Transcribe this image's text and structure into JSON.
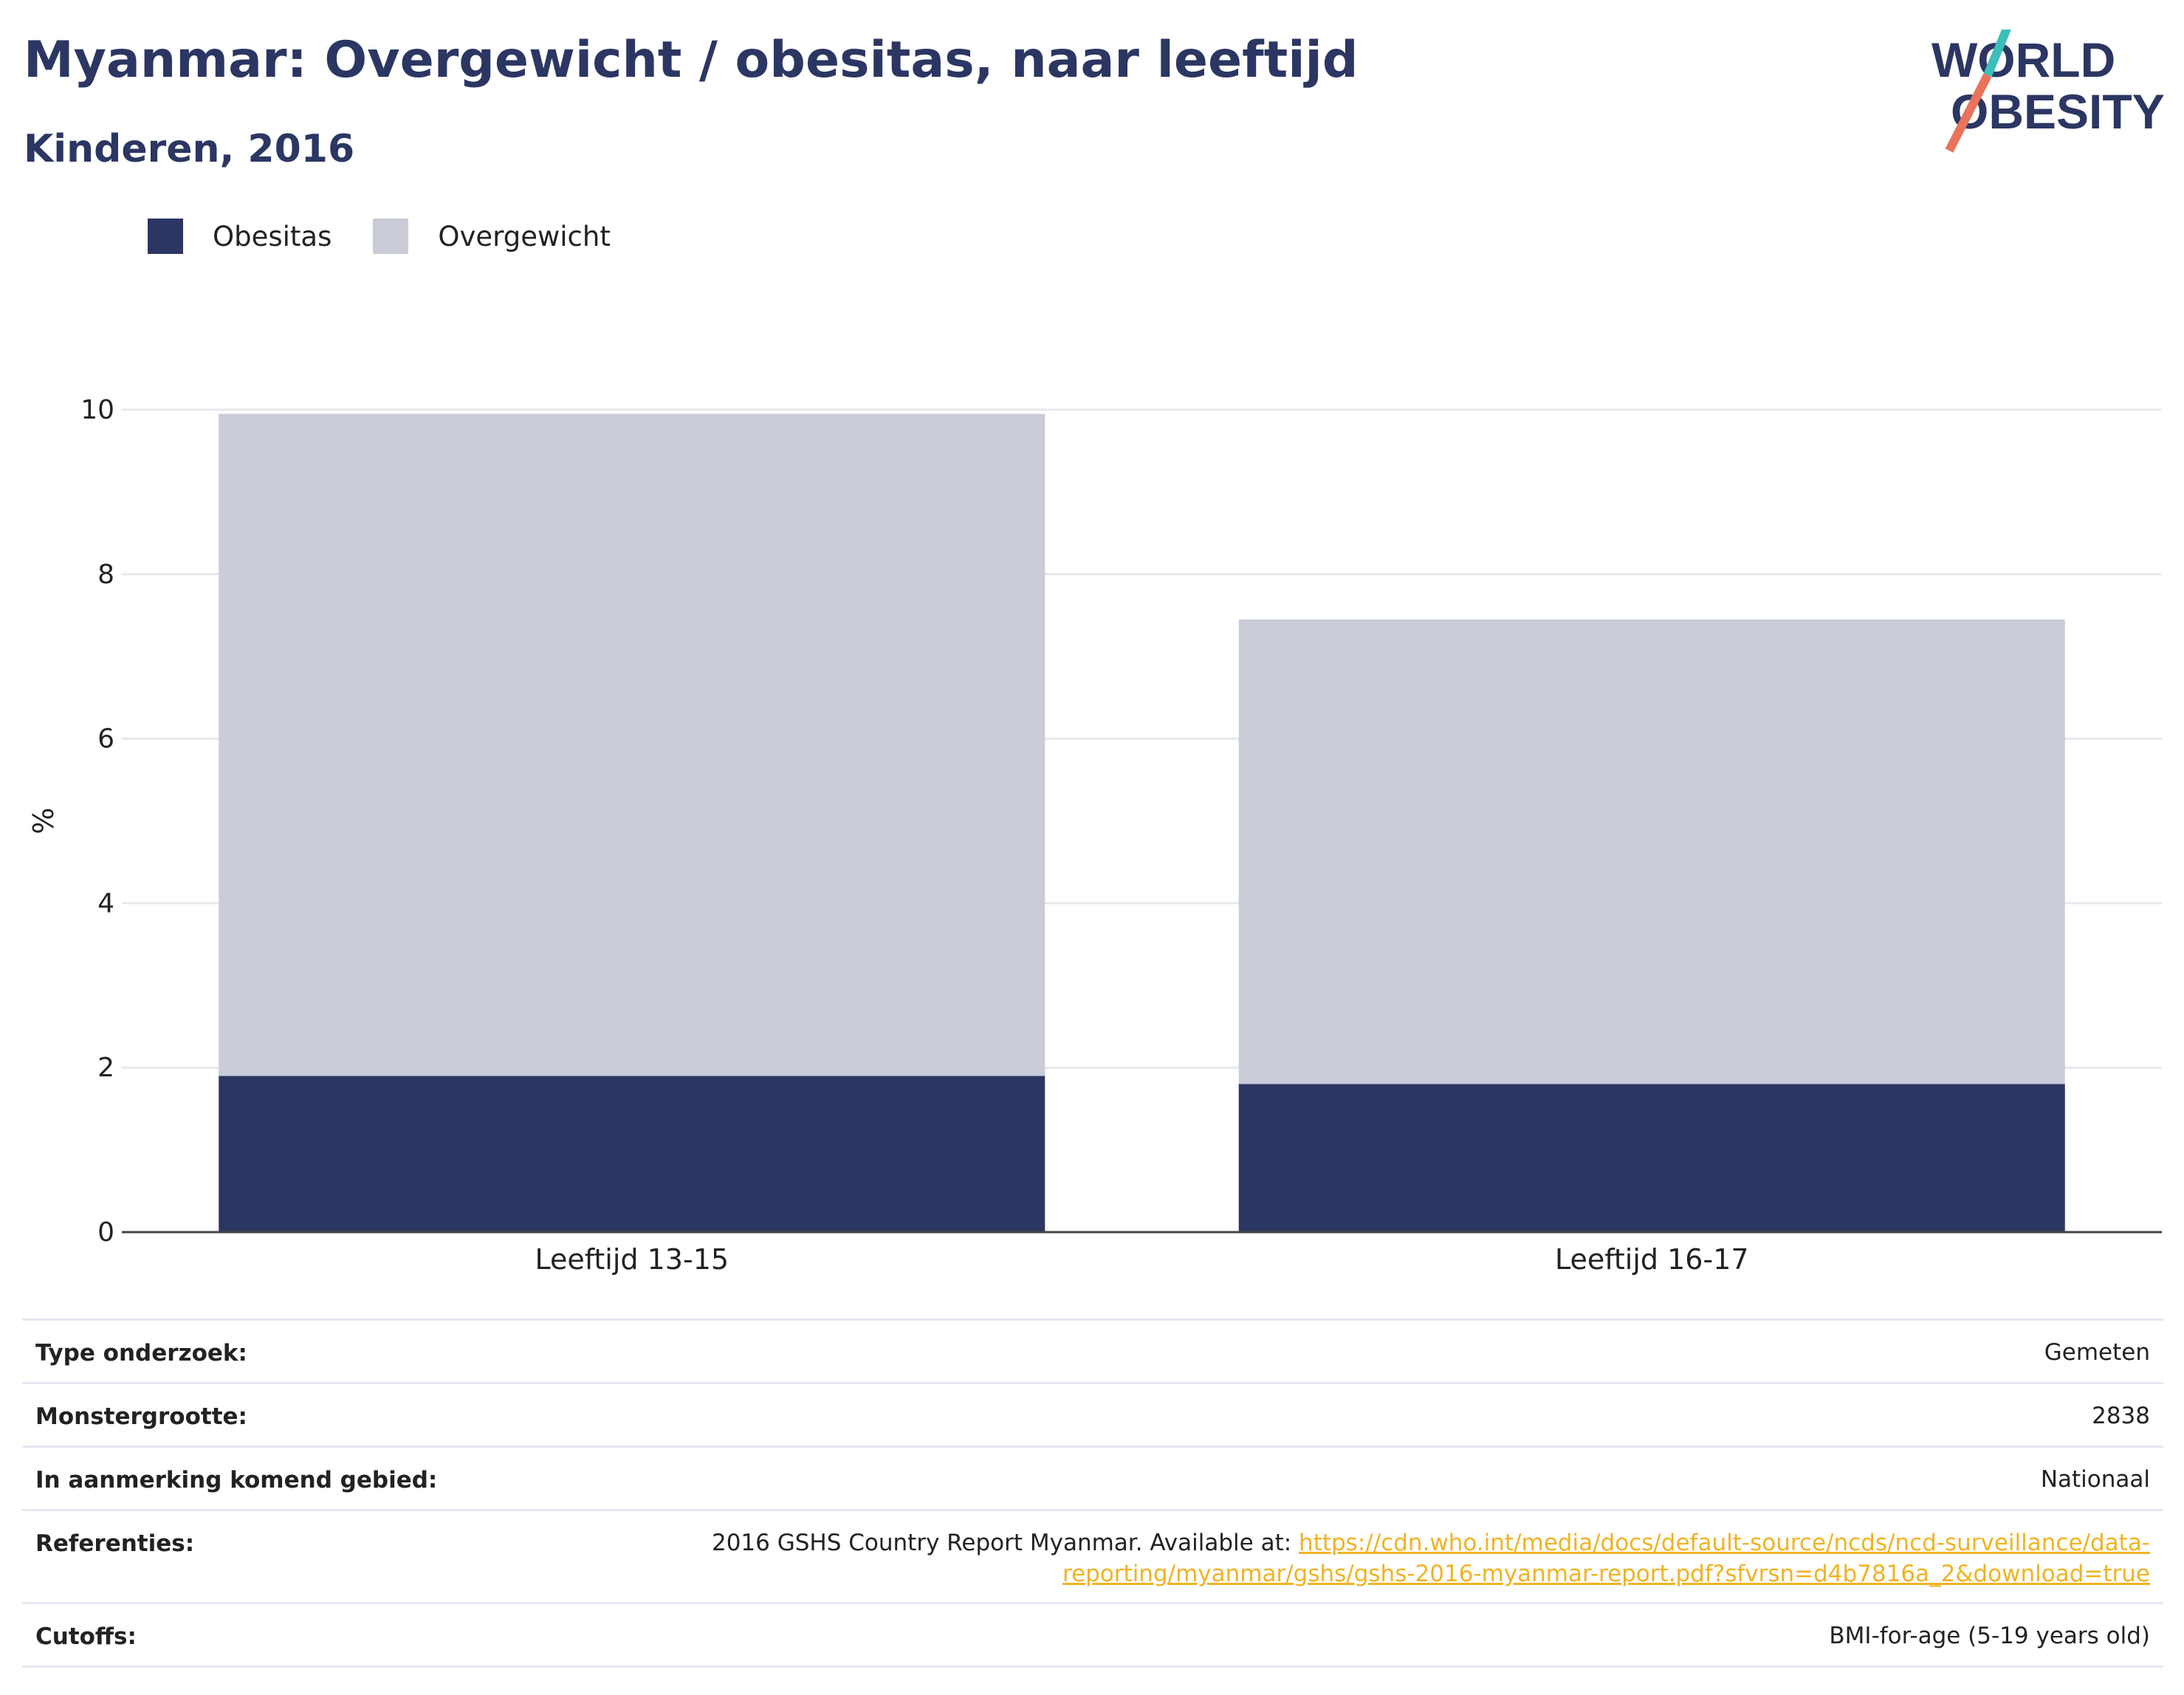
{
  "header": {
    "title": "Myanmar: Overgewicht / obesitas, naar leeftijd",
    "subtitle": "Kinderen, 2016"
  },
  "logo": {
    "line1": "WORLD",
    "line2": "OBESITY",
    "colors": {
      "text": "#2b3663",
      "slash_top": "#3bbfb8",
      "slash_bottom": "#e9735b"
    }
  },
  "chart_data": {
    "type": "bar",
    "stacked": true,
    "categories": [
      "Leeftijd 13-15",
      "Leeftijd 16-17"
    ],
    "series": [
      {
        "name": "Obesitas",
        "values": [
          1.9,
          1.8
        ],
        "color": "#2b3663"
      },
      {
        "name": "Overgewicht",
        "values": [
          8.05,
          5.65
        ],
        "color": "#c9ccd7"
      }
    ],
    "ylabel": "%",
    "ylim": [
      0,
      10
    ],
    "yticks": [
      0,
      2,
      4,
      6,
      8,
      10
    ],
    "grid": true,
    "legend_position": "top-left"
  },
  "info": [
    {
      "label": "Type onderzoek:",
      "value": "Gemeten"
    },
    {
      "label": "Monstergrootte:",
      "value": "2838"
    },
    {
      "label": "In aanmerking komend gebied:",
      "value": "Nationaal"
    },
    {
      "label": "Referenties:",
      "value": "2016 GSHS Country Report Myanmar. Available at: ",
      "link_line1": "https://cdn.who.int/media/docs/default-source/ncds/ncd-surveillance/data-",
      "link_line2": "reporting/myanmar/gshs/gshs-2016-myanmar-report.pdf?sfvrsn=d4b7816a_2&download=true"
    },
    {
      "label": "Cutoffs:",
      "value": "BMI-for-age (5-19 years old)"
    }
  ]
}
